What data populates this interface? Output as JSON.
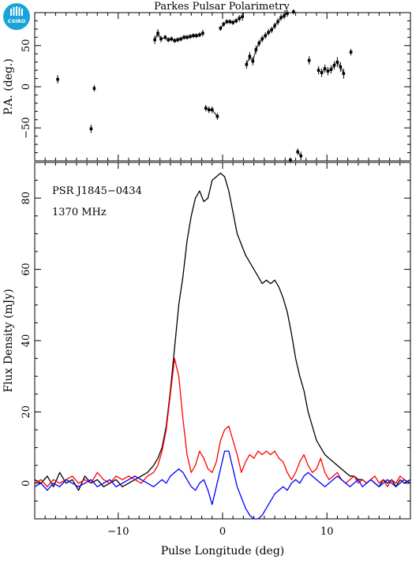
{
  "title": "Parkes Pulsar Polarimetry",
  "logo_text": "CSIRO",
  "chart_data": [
    {
      "type": "scatter",
      "panel": "top",
      "ylabel": "P.A. (deg.)",
      "xlim": [
        -18,
        18
      ],
      "ylim": [
        -90,
        90
      ],
      "yticks": [
        -50,
        0,
        50
      ],
      "ytick_labels": [
        "−50",
        "0",
        "50"
      ],
      "x_tick_labels_shown": false,
      "series": [
        {
          "style": "points-with-errorbars",
          "x": [
            -15.8,
            -12.6,
            -12.3,
            -6.5,
            -6.2,
            -5.9,
            -5.5,
            -5.2,
            -4.9,
            -4.6,
            -4.3,
            -4.0,
            -3.7,
            -3.4,
            -3.1,
            -2.8,
            -2.5,
            -2.2,
            -1.9,
            -1.6,
            -1.3,
            -1.0,
            -0.5,
            -0.2,
            0.1,
            0.4,
            0.7,
            1.0,
            1.3,
            1.6,
            1.9,
            2.3,
            2.6,
            2.9,
            3.2,
            3.5,
            3.8,
            4.1,
            4.4,
            4.7,
            5.0,
            5.3,
            5.6,
            5.9,
            6.2,
            6.5,
            6.8,
            7.2,
            7.5,
            8.3,
            9.2,
            9.5,
            9.8,
            10.1,
            10.4,
            10.7,
            11.0,
            11.3,
            11.6,
            12.3
          ],
          "y": [
            9,
            -51,
            -2,
            57,
            65,
            58,
            60,
            57,
            58,
            56,
            57,
            58,
            60,
            60,
            61,
            62,
            62,
            63,
            65,
            -26,
            -28,
            -28,
            -36,
            71,
            76,
            79,
            79,
            78,
            80,
            83,
            85,
            27,
            37,
            31,
            45,
            53,
            58,
            62,
            66,
            69,
            74,
            79,
            84,
            86,
            89,
            -89,
            91,
            -79,
            -84,
            32,
            20,
            17,
            22,
            19,
            21,
            26,
            30,
            24,
            16,
            42
          ],
          "err": [
            5,
            5,
            4,
            5,
            5,
            4,
            3,
            3,
            3,
            3,
            3,
            3,
            3,
            3,
            3,
            3,
            3,
            3,
            4,
            4,
            4,
            4,
            4,
            3,
            3,
            3,
            3,
            3,
            3,
            4,
            5,
            5,
            5,
            5,
            5,
            4,
            4,
            4,
            4,
            4,
            4,
            4,
            4,
            4,
            4,
            3,
            3,
            4,
            5,
            5,
            5,
            5,
            5,
            5,
            5,
            5,
            6,
            6,
            6,
            4
          ]
        }
      ]
    },
    {
      "type": "line",
      "panel": "bottom",
      "xlabel": "Pulse Longitude (deg)",
      "ylabel": "Flux Density (mJy)",
      "xlim": [
        -18,
        18
      ],
      "ylim": [
        -10,
        90
      ],
      "xticks": [
        -10,
        0,
        10
      ],
      "xtick_labels": [
        "−10",
        "0",
        "10"
      ],
      "yticks": [
        0,
        20,
        40,
        60,
        80
      ],
      "ytick_labels": [
        "0",
        "20",
        "40",
        "60",
        "80"
      ],
      "annotations": [
        "PSR J1845−0434",
        "1370 MHz"
      ],
      "series": [
        {
          "color": "#000000",
          "x": [
            -18,
            -17.4,
            -16.8,
            -16.2,
            -15.6,
            -15,
            -14.4,
            -13.8,
            -13.2,
            -12.6,
            -12,
            -11.4,
            -10.8,
            -10.2,
            -9.6,
            -9,
            -8.4,
            -7.8,
            -7.2,
            -6.6,
            -6.2,
            -5.8,
            -5.4,
            -5,
            -4.6,
            -4.2,
            -3.8,
            -3.4,
            -3,
            -2.6,
            -2.2,
            -1.8,
            -1.4,
            -1,
            -0.6,
            -0.2,
            0.2,
            0.6,
            1,
            1.4,
            1.8,
            2.2,
            2.6,
            3,
            3.4,
            3.8,
            4.2,
            4.6,
            5,
            5.4,
            5.8,
            6.2,
            6.6,
            7,
            7.4,
            7.8,
            8.2,
            8.6,
            9,
            9.4,
            9.8,
            10.2,
            10.6,
            11,
            11.4,
            11.8,
            12.2,
            12.6,
            13,
            13.4,
            13.8,
            14.2,
            14.6,
            15,
            15.4,
            15.8,
            16.2,
            16.6,
            17,
            17.4,
            18
          ],
          "y": [
            1,
            0,
            2,
            -1,
            3,
            0,
            1,
            -2,
            2,
            0,
            1,
            -1,
            0,
            1,
            -1,
            0,
            1,
            2,
            3,
            5,
            7,
            10,
            16,
            26,
            38,
            50,
            58,
            68,
            75,
            80,
            82,
            79,
            80,
            85,
            86,
            87,
            86,
            82,
            76,
            70,
            67,
            64,
            62,
            60,
            58,
            56,
            57,
            56,
            57,
            55,
            52,
            48,
            42,
            35,
            30,
            26,
            20,
            16,
            12,
            10,
            8,
            7,
            6,
            5,
            4,
            3,
            2,
            2,
            1,
            1,
            0,
            1,
            0,
            -1,
            1,
            0,
            1,
            -1,
            1,
            0,
            1
          ]
        },
        {
          "color": "#ff0000",
          "x": [
            -18,
            -17.4,
            -16.8,
            -16.2,
            -15.6,
            -15,
            -14.4,
            -13.8,
            -13.2,
            -12.6,
            -12,
            -11.4,
            -10.8,
            -10.2,
            -9.6,
            -9,
            -8.4,
            -7.8,
            -7.2,
            -6.6,
            -6.2,
            -5.8,
            -5.4,
            -5,
            -4.6,
            -4.2,
            -3.8,
            -3.4,
            -3,
            -2.6,
            -2.2,
            -1.8,
            -1.4,
            -1,
            -0.6,
            -0.2,
            0.2,
            0.6,
            1,
            1.4,
            1.8,
            2.2,
            2.6,
            3,
            3.4,
            3.8,
            4.2,
            4.6,
            5,
            5.4,
            5.8,
            6.2,
            6.6,
            7,
            7.4,
            7.8,
            8.2,
            8.6,
            9,
            9.4,
            9.8,
            10.2,
            10.6,
            11,
            11.4,
            11.8,
            12.2,
            12.6,
            13,
            13.4,
            13.8,
            14.2,
            14.6,
            15,
            15.4,
            15.8,
            16.2,
            16.6,
            17,
            17.4,
            18
          ],
          "y": [
            0,
            1,
            -1,
            1,
            0,
            1,
            2,
            0,
            1,
            0,
            3,
            1,
            0,
            2,
            1,
            2,
            1,
            0,
            2,
            3,
            5,
            9,
            15,
            25,
            35,
            30,
            18,
            8,
            3,
            5,
            9,
            7,
            4,
            3,
            6,
            12,
            15,
            16,
            12,
            8,
            3,
            6,
            8,
            7,
            9,
            8,
            9,
            8,
            9,
            7,
            6,
            3,
            1,
            3,
            6,
            8,
            5,
            3,
            4,
            7,
            3,
            1,
            2,
            3,
            1,
            0,
            1,
            2,
            0,
            1,
            0,
            1,
            2,
            0,
            1,
            -1,
            1,
            0,
            2,
            1,
            0
          ]
        },
        {
          "color": "#0000ff",
          "x": [
            -18,
            -17.4,
            -16.8,
            -16.2,
            -15.6,
            -15,
            -14.4,
            -13.8,
            -13.2,
            -12.6,
            -12,
            -11.4,
            -10.8,
            -10.2,
            -9.6,
            -9,
            -8.4,
            -7.8,
            -7.2,
            -6.6,
            -6.2,
            -5.8,
            -5.4,
            -5,
            -4.6,
            -4.2,
            -3.8,
            -3.4,
            -3,
            -2.6,
            -2.2,
            -1.8,
            -1.4,
            -1,
            -0.6,
            -0.2,
            0.2,
            0.6,
            1,
            1.4,
            1.8,
            2.2,
            2.6,
            3,
            3.4,
            3.8,
            4.2,
            4.6,
            5,
            5.4,
            5.8,
            6.2,
            6.6,
            7,
            7.4,
            7.8,
            8.2,
            8.6,
            9,
            9.4,
            9.8,
            10.2,
            10.6,
            11,
            11.4,
            11.8,
            12.2,
            12.6,
            13,
            13.4,
            13.8,
            14.2,
            14.6,
            15,
            15.4,
            15.8,
            16.2,
            16.6,
            17,
            17.4,
            18
          ],
          "y": [
            -1,
            0,
            -2,
            0,
            -1,
            1,
            0,
            -1,
            0,
            1,
            -1,
            0,
            1,
            -1,
            0,
            1,
            2,
            1,
            0,
            -1,
            0,
            1,
            0,
            2,
            3,
            4,
            3,
            1,
            -1,
            -2,
            0,
            1,
            -2,
            -6,
            -1,
            4,
            9,
            9,
            4,
            -1,
            -4,
            -7,
            -9,
            -10,
            -10,
            -9,
            -7,
            -5,
            -3,
            -2,
            -1,
            -2,
            0,
            1,
            0,
            2,
            3,
            2,
            1,
            0,
            -1,
            0,
            1,
            2,
            1,
            0,
            -1,
            0,
            1,
            -1,
            0,
            1,
            0,
            -1,
            0,
            1,
            0,
            -1,
            0,
            1,
            0
          ]
        }
      ]
    }
  ]
}
